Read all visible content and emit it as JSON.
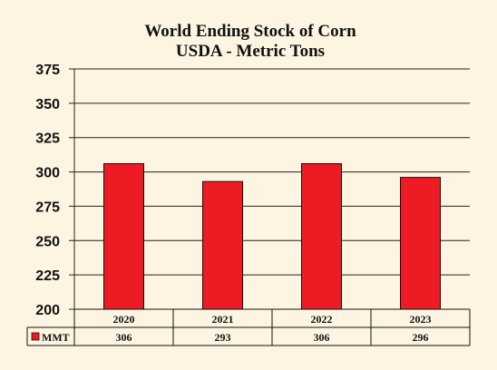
{
  "chart_data": {
    "type": "bar",
    "title": "World Ending Stock of Corn",
    "subtitle": "USDA - Metric Tons",
    "categories": [
      "2020",
      "2021",
      "2022",
      "2023"
    ],
    "series": [
      {
        "name": "MMT",
        "values": [
          306,
          293,
          306,
          296
        ],
        "color": "#ed1c24"
      }
    ],
    "ylim": [
      200,
      375
    ],
    "yticks": [
      "375",
      "350",
      "325",
      "300",
      "275",
      "250",
      "225",
      "200"
    ],
    "grid": true,
    "data_table": {
      "row_label": "MMT",
      "cells": [
        "306",
        "293",
        "306",
        "296"
      ]
    }
  }
}
